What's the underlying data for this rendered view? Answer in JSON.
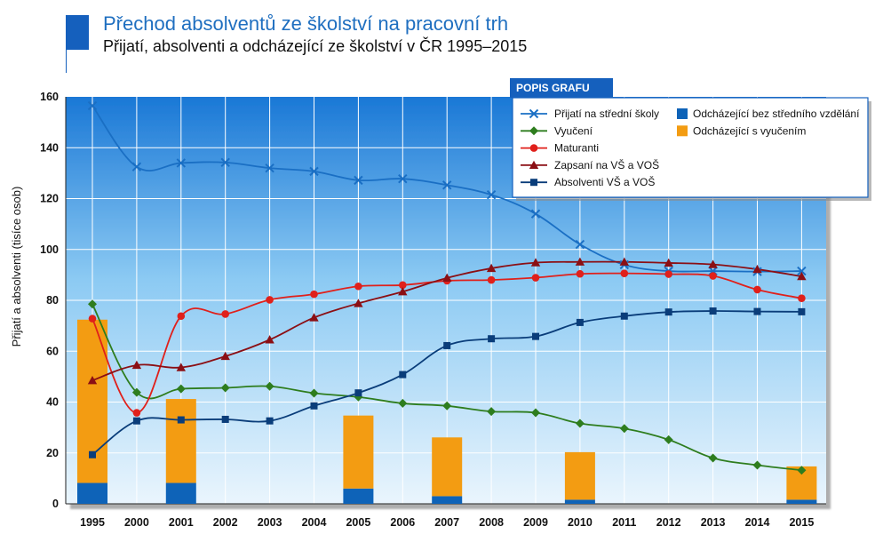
{
  "header": {
    "title": "Přechod absolventů ze školství na pracovní trh",
    "subtitle": "Přijatí, absolventi a odcházející ze školství v ČR 1995–2015"
  },
  "colors": {
    "background_top": "#1a78d6",
    "background_bottom": "#e6f3fd",
    "grid": "#ffffff",
    "legend_header": "#1560bd"
  },
  "chart_data": {
    "type": "line",
    "title": "Přechod absolventů ze školství na pracovní trh",
    "subtitle": "Přijatí, absolventi a odcházející ze školství v ČR 1995–2015",
    "ylabel": "Přijatí a absolventi (tisíce osob)",
    "xlabel": "",
    "ylim": [
      0,
      160
    ],
    "yticks": [
      0,
      20,
      40,
      60,
      80,
      100,
      120,
      140,
      160
    ],
    "x": [
      "1995",
      "2000",
      "2001",
      "2002",
      "2003",
      "2004",
      "2005",
      "2006",
      "2007",
      "2008",
      "2009",
      "2010",
      "2011",
      "2012",
      "2013",
      "2014",
      "2015"
    ],
    "legend_title": "POPIS GRAFU",
    "legend_position": "top-right",
    "grid": true,
    "series": [
      {
        "name": "Přijatí na střední školy",
        "kind": "line",
        "marker": "x",
        "color": "#1a6fc4",
        "values": [
          156.5,
          132.5,
          134,
          134.2,
          132,
          130.7,
          127.2,
          127.8,
          125.3,
          121.5,
          114,
          102,
          94,
          91.5,
          91.5,
          91.3,
          91.5
        ]
      },
      {
        "name": "Vyučení",
        "kind": "line",
        "marker": "diamond",
        "color": "#2e7d1e",
        "values": [
          78.5,
          43.8,
          45.2,
          45.6,
          46.2,
          43.5,
          42,
          39.5,
          38.5,
          36.3,
          35.8,
          31.6,
          29.6,
          25.2,
          18,
          15.2,
          13.2
        ]
      },
      {
        "name": "Maturanti",
        "kind": "line",
        "marker": "circle",
        "color": "#e0201b",
        "values": [
          72.8,
          35.8,
          73.8,
          74.6,
          80.2,
          82.4,
          85.5,
          86,
          87.7,
          88,
          88.9,
          90.4,
          90.6,
          90.3,
          89.6,
          84.2,
          80.8
        ]
      },
      {
        "name": "Zapsaní na VŠ a VOŠ",
        "kind": "line",
        "marker": "triangle",
        "color": "#8b0f14",
        "values": [
          48.5,
          54.5,
          53.6,
          58,
          64.5,
          73.2,
          78.8,
          83.4,
          88.8,
          92.6,
          94.8,
          95.1,
          95.1,
          94.7,
          94.1,
          92.2,
          89.4
        ]
      },
      {
        "name": "Absolventi VŠ a VOŠ",
        "kind": "line",
        "marker": "square",
        "color": "#0a3d7a",
        "values": [
          19.3,
          32.6,
          33,
          33.2,
          32.6,
          38.5,
          43.6,
          50.8,
          62.2,
          64.9,
          65.8,
          71.3,
          73.8,
          75.4,
          75.8,
          75.6,
          75.5
        ]
      },
      {
        "name": "Odcházející bez středního vzdělání",
        "kind": "bar",
        "color": "#0e63b8",
        "values": [
          8.2,
          null,
          8.2,
          null,
          null,
          null,
          6,
          null,
          3,
          null,
          null,
          1.6,
          null,
          null,
          null,
          null,
          1.6
        ]
      },
      {
        "name": "Odcházející s vyučením",
        "kind": "bar",
        "color": "#f39c12",
        "values": [
          64.2,
          null,
          33,
          null,
          null,
          null,
          28.7,
          null,
          23.1,
          null,
          null,
          18.7,
          null,
          null,
          null,
          null,
          13.1
        ]
      }
    ]
  }
}
